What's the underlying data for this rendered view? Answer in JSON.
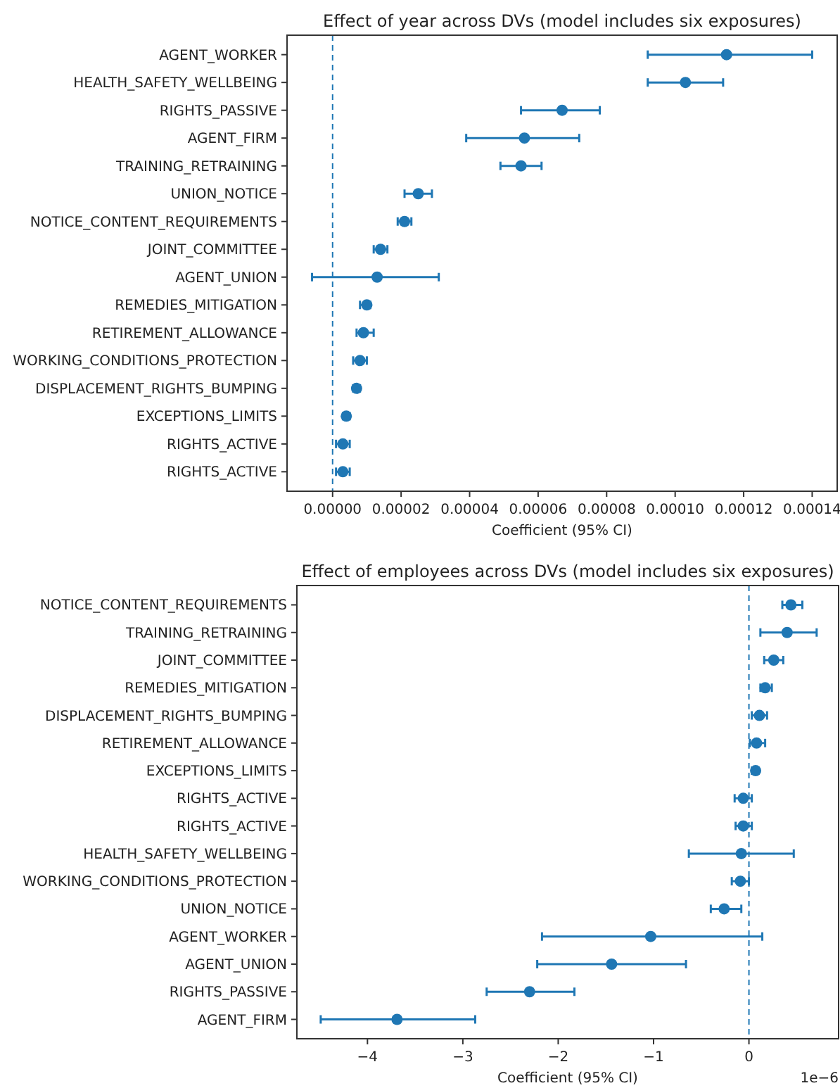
{
  "chart_data": [
    {
      "type": "scatter",
      "orientation": "horizontal",
      "title": "Effect of year across DVs (model includes six exposures)",
      "xlabel": "Coefficient (95% CI)",
      "marker": "circle",
      "categories": [
        "AGENT_WORKER",
        "HEALTH_SAFETY_WELLBEING",
        "RIGHTS_PASSIVE",
        "AGENT_FIRM",
        "TRAINING_RETRAINING",
        "UNION_NOTICE",
        "NOTICE_CONTENT_REQUIREMENTS",
        "JOINT_COMMITTEE",
        "AGENT_UNION",
        "REMEDIES_MITIGATION",
        "RETIREMENT_ALLOWANCE",
        "WORKING_CONDITIONS_PROTECTION",
        "DISPLACEMENT_RIGHTS_BUMPING",
        "EXCEPTIONS_LIMITS",
        "RIGHTS_ACTIVE",
        "RIGHTS_ACTIVE"
      ],
      "series": [
        {
          "color": "#1f77b4",
          "values": [
            0.000115,
            0.000103,
            6.7e-05,
            5.6e-05,
            5.5e-05,
            2.5e-05,
            2.1e-05,
            1.4e-05,
            1.3e-05,
            1e-05,
            9e-06,
            8e-06,
            7e-06,
            4e-06,
            3e-06,
            3e-06
          ],
          "errors": [
            [
              9.2e-05,
              0.00014
            ],
            [
              9.2e-05,
              0.000114
            ],
            [
              5.5e-05,
              7.8e-05
            ],
            [
              3.9e-05,
              7.2e-05
            ],
            [
              4.9e-05,
              6.1e-05
            ],
            [
              2.1e-05,
              2.9e-05
            ],
            [
              1.9e-05,
              2.3e-05
            ],
            [
              1.2e-05,
              1.6e-05
            ],
            [
              -6e-06,
              3.1e-05
            ],
            [
              8e-06,
              1.1e-05
            ],
            [
              7e-06,
              1.2e-05
            ],
            [
              6e-06,
              1e-05
            ],
            [
              6e-06,
              8e-06
            ],
            [
              3e-06,
              5e-06
            ],
            [
              1e-06,
              5e-06
            ],
            [
              1e-06,
              5e-06
            ]
          ]
        }
      ],
      "xlim": [
        -1.33e-05,
        0.0001473
      ],
      "xticks": [
        {
          "value": 0,
          "label": "0.00000"
        },
        {
          "value": 2e-05,
          "label": "0.00002"
        },
        {
          "value": 4e-05,
          "label": "0.00004"
        },
        {
          "value": 6e-05,
          "label": "0.00006"
        },
        {
          "value": 8e-05,
          "label": "0.00008"
        },
        {
          "value": 0.0001,
          "label": "0.00010"
        },
        {
          "value": 0.00012,
          "label": "0.00012"
        },
        {
          "value": 0.00014,
          "label": "0.00014"
        }
      ],
      "ref_lines": [
        {
          "axis": "x",
          "value": 0,
          "color": "#1f77b4",
          "line_style": "dashed"
        }
      ]
    },
    {
      "type": "scatter",
      "orientation": "horizontal",
      "title": "Effect of employees across DVs (model includes six exposures)",
      "xlabel": "Coefficient (95% CI)",
      "marker": "circle",
      "categories": [
        "NOTICE_CONTENT_REQUIREMENTS",
        "TRAINING_RETRAINING",
        "JOINT_COMMITTEE",
        "REMEDIES_MITIGATION",
        "DISPLACEMENT_RIGHTS_BUMPING",
        "RETIREMENT_ALLOWANCE",
        "EXCEPTIONS_LIMITS",
        "RIGHTS_ACTIVE",
        "RIGHTS_ACTIVE",
        "HEALTH_SAFETY_WELLBEING",
        "WORKING_CONDITIONS_PROTECTION",
        "UNION_NOTICE",
        "AGENT_WORKER",
        "AGENT_UNION",
        "RIGHTS_PASSIVE",
        "AGENT_FIRM"
      ],
      "series": [
        {
          "color": "#1f77b4",
          "values": [
            0.44,
            0.4,
            0.26,
            0.17,
            0.11,
            0.08,
            0.07,
            -0.06,
            -0.06,
            -0.08,
            -0.09,
            -0.26,
            -1.03,
            -1.44,
            -2.3,
            -3.69
          ],
          "errors": [
            [
              0.35,
              0.56
            ],
            [
              0.12,
              0.71
            ],
            [
              0.16,
              0.36
            ],
            [
              0.12,
              0.24
            ],
            [
              0.03,
              0.19
            ],
            [
              0.01,
              0.17
            ],
            [
              0.03,
              0.1
            ],
            [
              -0.15,
              0.03
            ],
            [
              -0.14,
              0.03
            ],
            [
              -0.63,
              0.47
            ],
            [
              -0.18,
              0
            ],
            [
              -0.4,
              -0.08
            ],
            [
              -2.17,
              0.14
            ],
            [
              -2.22,
              -0.66
            ],
            [
              -2.75,
              -1.83
            ],
            [
              -4.49,
              -2.87
            ]
          ]
        }
      ],
      "xlim": [
        -4.74,
        0.94
      ],
      "xticks": [
        {
          "value": -4,
          "label": "−4"
        },
        {
          "value": -3,
          "label": "−3"
        },
        {
          "value": -2,
          "label": "−2"
        },
        {
          "value": -1,
          "label": "−1"
        },
        0
      ],
      "annotations": [
        "1e−6"
      ],
      "ref_lines": [
        {
          "axis": "x",
          "value": 0,
          "color": "#1f77b4",
          "line_style": "dashed"
        }
      ]
    }
  ]
}
